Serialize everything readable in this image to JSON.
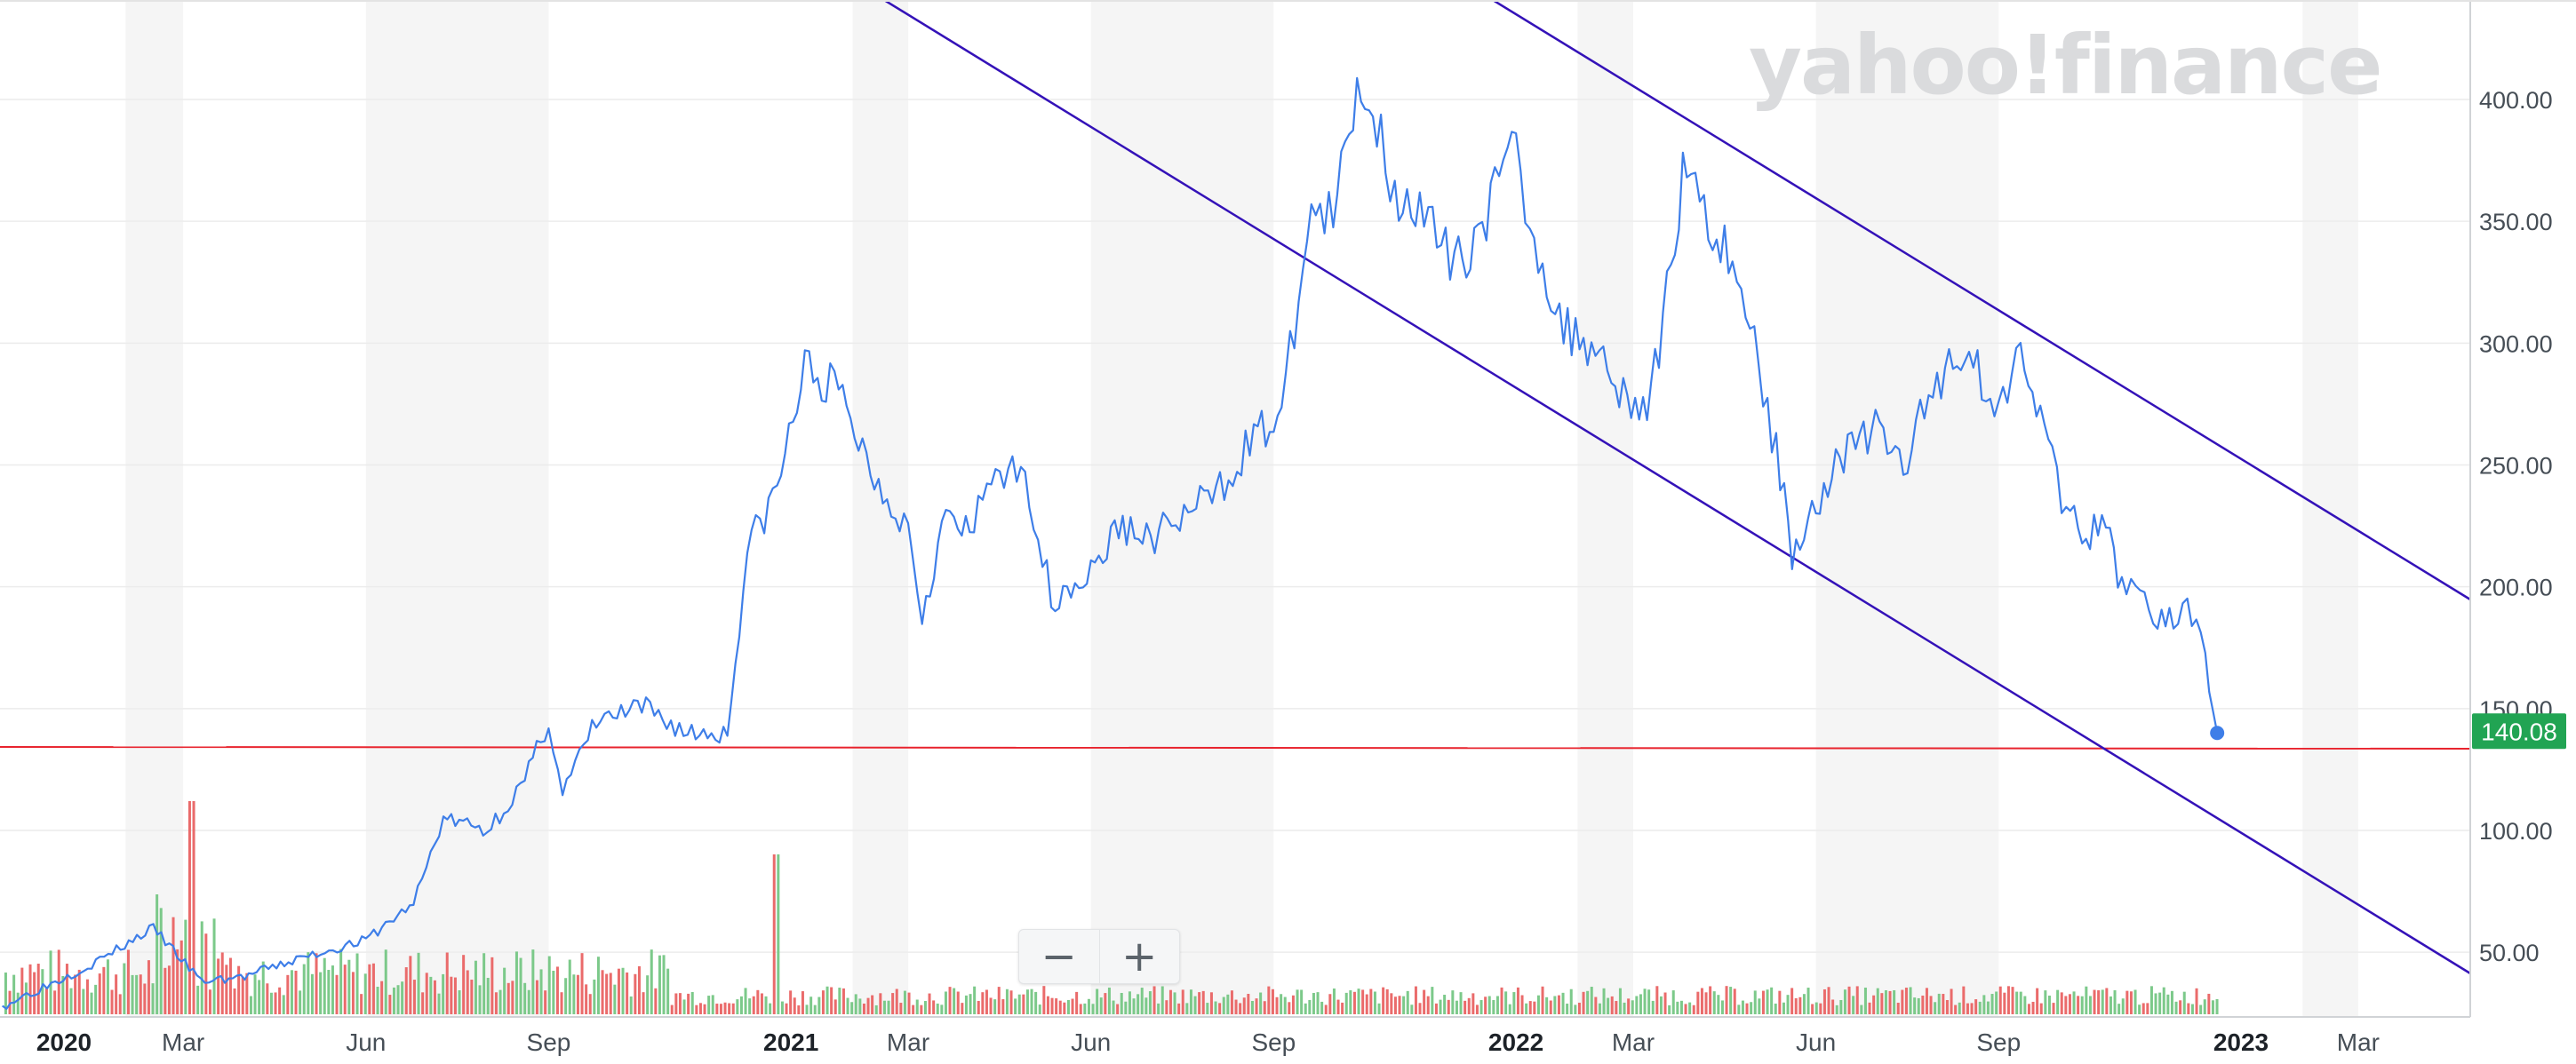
{
  "watermark": "yahoo!finance",
  "zoom": {
    "minus_label": "−",
    "plus_label": "+"
  },
  "colors": {
    "price_line": "#3e7ee8",
    "channel_line": "#3412b8",
    "support_line": "#e8232d",
    "vol_up": "#7cc98a",
    "vol_down": "#ea6b6b",
    "last_price_bg": "#21a453"
  },
  "chart_data": {
    "type": "line",
    "title": "",
    "xlabel": "",
    "ylabel": "",
    "ylim": [
      25,
      420
    ],
    "y_ticks": [
      "50.00",
      "100.00",
      "150.00",
      "200.00",
      "250.00",
      "300.00",
      "350.00",
      "400.00"
    ],
    "x_ticks": [
      {
        "label": "2020",
        "date": "2020-01-01",
        "bold": true
      },
      {
        "label": "Mar",
        "date": "2020-03-01",
        "bold": false
      },
      {
        "label": "Jun",
        "date": "2020-06-01",
        "bold": false
      },
      {
        "label": "Sep",
        "date": "2020-09-01",
        "bold": false
      },
      {
        "label": "2021",
        "date": "2021-01-01",
        "bold": true
      },
      {
        "label": "Mar",
        "date": "2021-03-01",
        "bold": false
      },
      {
        "label": "Jun",
        "date": "2021-06-01",
        "bold": false
      },
      {
        "label": "Sep",
        "date": "2021-09-01",
        "bold": false
      },
      {
        "label": "2022",
        "date": "2022-01-01",
        "bold": true
      },
      {
        "label": "Mar",
        "date": "2022-03-01",
        "bold": false
      },
      {
        "label": "Jun",
        "date": "2022-06-01",
        "bold": false
      },
      {
        "label": "Sep",
        "date": "2022-09-01",
        "bold": false
      },
      {
        "label": "2023",
        "date": "2023-01-01",
        "bold": true
      },
      {
        "label": "Mar",
        "date": "2023-03-01",
        "bold": false
      }
    ],
    "last_price": "140.08",
    "grid": true,
    "series": [
      {
        "x": [
          "2019-12-01",
          "2020-01-15",
          "2020-02-15",
          "2020-03-10",
          "2020-04-01",
          "2020-05-01",
          "2020-06-01",
          "2020-06-25",
          "2020-07-10",
          "2020-08-01",
          "2020-08-20",
          "2020-09-01",
          "2020-09-08",
          "2020-09-25",
          "2020-10-20",
          "2020-11-10",
          "2020-11-30",
          "2020-12-10",
          "2020-12-25",
          "2021-01-08",
          "2021-01-25",
          "2021-02-12",
          "2021-03-01",
          "2021-03-08",
          "2021-03-20",
          "2021-04-01",
          "2021-04-14",
          "2021-05-01",
          "2021-05-12",
          "2021-05-20",
          "2021-06-01",
          "2021-06-15",
          "2021-07-01",
          "2021-07-20",
          "2021-08-05",
          "2021-08-20",
          "2021-09-05",
          "2021-09-20",
          "2021-10-01",
          "2021-10-15",
          "2021-10-25",
          "2021-11-01",
          "2021-11-05",
          "2021-11-20",
          "2021-12-01",
          "2021-12-15",
          "2022-01-01",
          "2022-01-08",
          "2022-01-25",
          "2022-02-10",
          "2022-02-28",
          "2022-03-10",
          "2022-03-28",
          "2022-04-10",
          "2022-04-20",
          "2022-05-01",
          "2022-05-12",
          "2022-05-20",
          "2022-06-01",
          "2022-06-15",
          "2022-07-01",
          "2022-07-15",
          "2022-08-01",
          "2022-08-15",
          "2022-09-01",
          "2022-09-12",
          "2022-09-28",
          "2022-10-05",
          "2022-10-15",
          "2022-10-25",
          "2022-11-02",
          "2022-11-09",
          "2022-11-20",
          "2022-11-28",
          "2022-12-05",
          "2022-12-14",
          "2022-12-20"
        ],
        "values": [
          28,
          45,
          60,
          38,
          40,
          48,
          55,
          70,
          105,
          100,
          120,
          145,
          115,
          145,
          150,
          140,
          140,
          215,
          240,
          290,
          280,
          245,
          225,
          190,
          230,
          220,
          250,
          240,
          195,
          200,
          205,
          225,
          220,
          230,
          240,
          260,
          270,
          355,
          350,
          410,
          385,
          360,
          365,
          345,
          330,
          350,
          380,
          350,
          305,
          300,
          275,
          275,
          380,
          345,
          335,
          300,
          255,
          215,
          235,
          255,
          265,
          250,
          285,
          300,
          270,
          305,
          250,
          230,
          220,
          225,
          200,
          205,
          185,
          185,
          195,
          170,
          140
        ]
      }
    ],
    "volume_note": "volume bars along bottom (green = up day, red = down day)"
  }
}
